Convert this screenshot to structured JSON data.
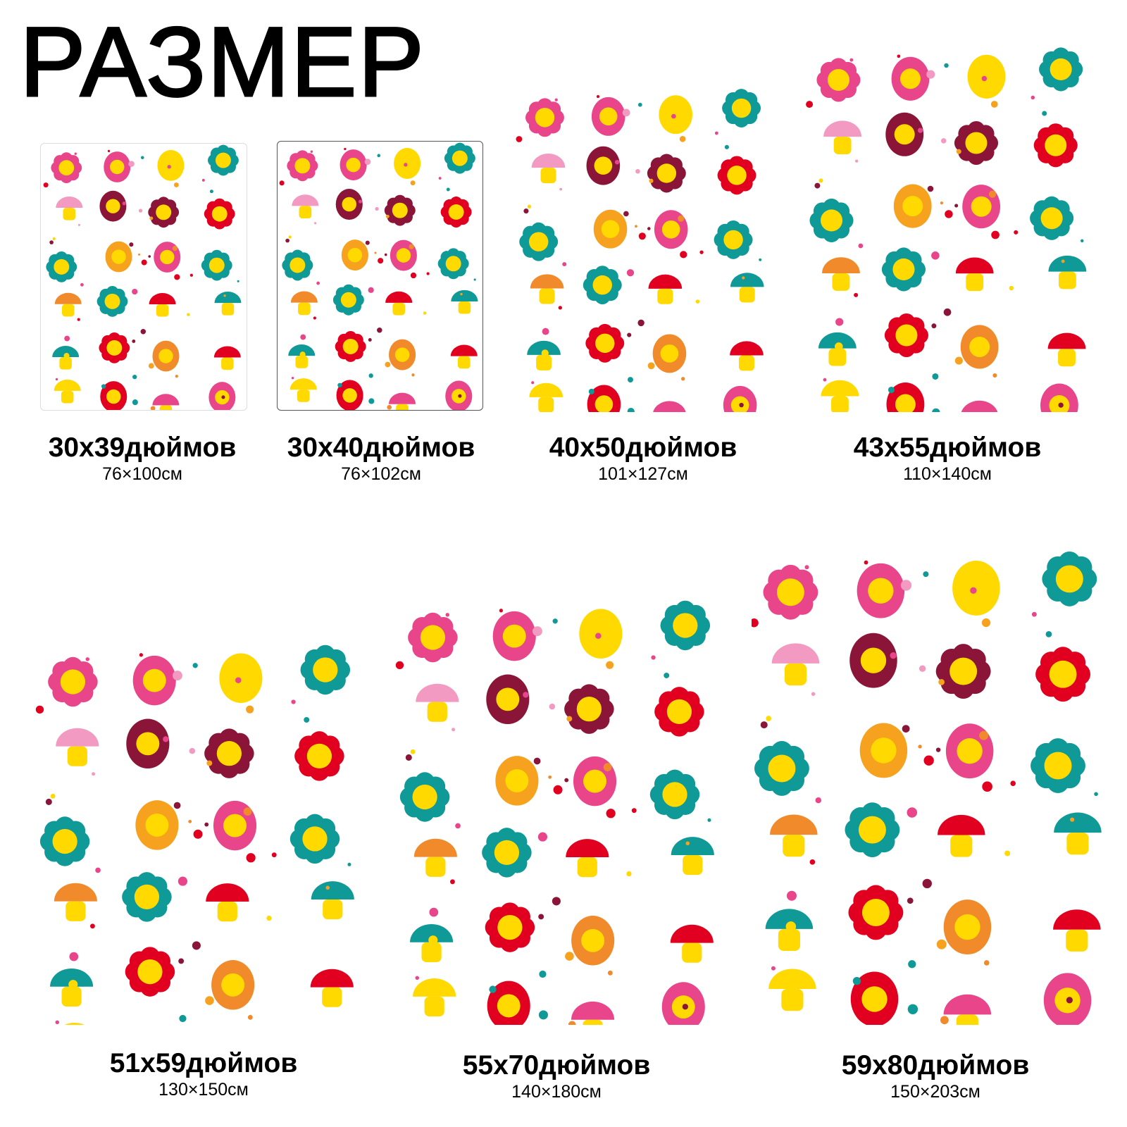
{
  "title": "РАЗМЕР",
  "pattern_colors": [
    "#e8458b",
    "#f6a21e",
    "#ffd900",
    "#0f9a98",
    "#f29ac1",
    "#e1001f",
    "#f08a2a",
    "#8a1538"
  ],
  "sizes": [
    {
      "inches": "30x39дюймов",
      "cm": "76×100см"
    },
    {
      "inches": "30x40дюймов",
      "cm": "76×102см"
    },
    {
      "inches": "40x50дюймов",
      "cm": "101×127см"
    },
    {
      "inches": "43x55дюймов",
      "cm": "110×140см"
    },
    {
      "inches": "51x59дюймов",
      "cm": "130×150см"
    },
    {
      "inches": "55x70дюймов",
      "cm": "140×180см"
    },
    {
      "inches": "59x80дюймов",
      "cm": "150×203см"
    }
  ]
}
